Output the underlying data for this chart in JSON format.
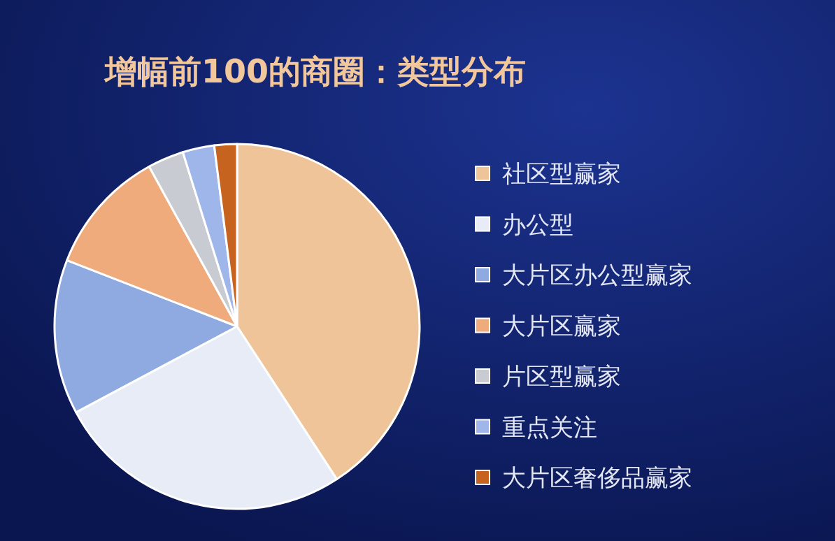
{
  "chart_data": {
    "type": "pie",
    "title": "增幅前100的商圈：类型分布",
    "categories": [
      "社区型赢家",
      "办公型",
      "大片区办公型赢家",
      "大片区赢家",
      "片区型赢家",
      "重点关注",
      "大片区奢侈品赢家"
    ],
    "values": [
      40.8,
      26.4,
      13.7,
      11.1,
      3.2,
      2.8,
      2.0
    ],
    "colors": [
      "#eec498",
      "#e8ecf6",
      "#8faae0",
      "#f0ab7c",
      "#c9cbd3",
      "#9fb6ea",
      "#c6641f"
    ],
    "legend": "right"
  }
}
